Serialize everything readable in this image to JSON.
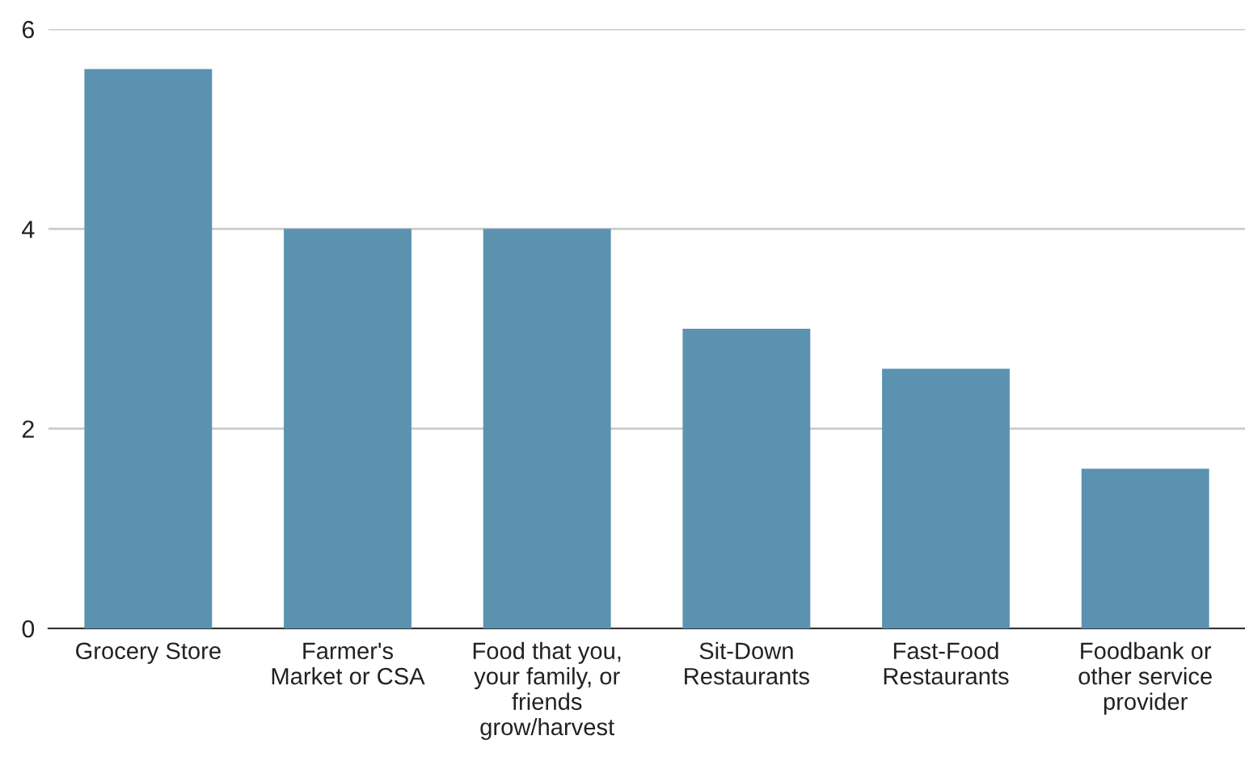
{
  "chart_data": {
    "type": "bar",
    "categories": [
      "Grocery Store",
      "Farmer's\nMarket or CSA",
      "Food that you,\nyour family, or\nfriends\ngrow/harvest",
      "Sit-Down\nRestaurants",
      "Fast-Food\nRestaurants",
      "Foodbank or\nother service\nprovider"
    ],
    "values": [
      5.6,
      4.0,
      4.0,
      3.0,
      2.6,
      1.6
    ],
    "color": "#5b92b0",
    "ylim": [
      0,
      6
    ],
    "yticks": [
      0,
      2,
      4,
      6
    ],
    "grid": "y"
  }
}
